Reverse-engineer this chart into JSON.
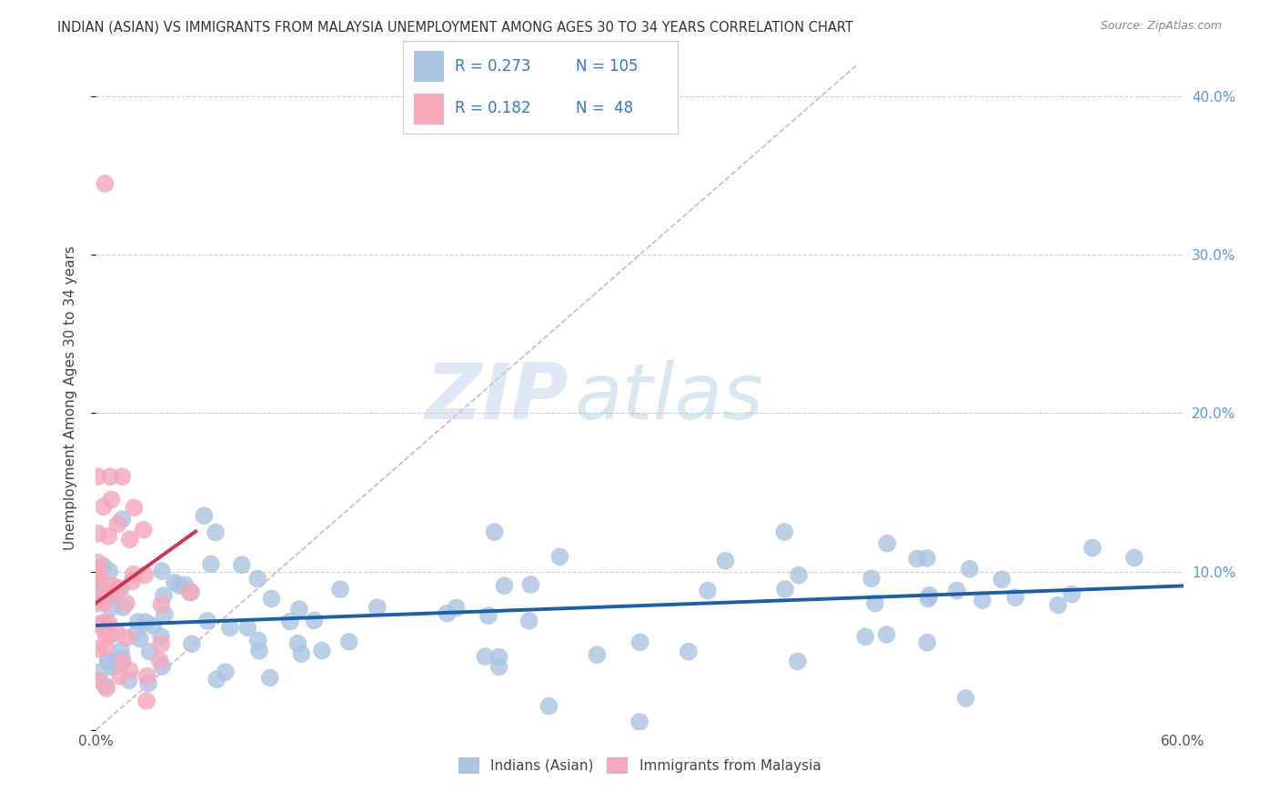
{
  "title": "INDIAN (ASIAN) VS IMMIGRANTS FROM MALAYSIA UNEMPLOYMENT AMONG AGES 30 TO 34 YEARS CORRELATION CHART",
  "source": "Source: ZipAtlas.com",
  "ylabel": "Unemployment Among Ages 30 to 34 years",
  "xlim": [
    0.0,
    0.6
  ],
  "ylim": [
    0.0,
    0.42
  ],
  "x_ticks": [
    0.0,
    0.1,
    0.2,
    0.3,
    0.4,
    0.5,
    0.6
  ],
  "x_tick_labels": [
    "0.0%",
    "",
    "",
    "",
    "",
    "",
    "60.0%"
  ],
  "y_ticks": [
    0.0,
    0.1,
    0.2,
    0.3,
    0.4
  ],
  "y_tick_labels_right": [
    "",
    "10.0%",
    "20.0%",
    "30.0%",
    "40.0%"
  ],
  "watermark_zip": "ZIP",
  "watermark_atlas": "atlas",
  "legend_blue_r": "0.273",
  "legend_blue_n": "105",
  "legend_pink_r": "0.182",
  "legend_pink_n": "48",
  "blue_color": "#aac4e2",
  "pink_color": "#f5a8ba",
  "line_blue_color": "#1a5fa8",
  "line_pink_color": "#cc3355",
  "diag_color": "#e0b0c0",
  "grid_color": "#d0d0d0",
  "title_color": "#333333",
  "source_color": "#888888",
  "right_axis_color": "#5599dd",
  "legend_text_color": "#3377cc"
}
